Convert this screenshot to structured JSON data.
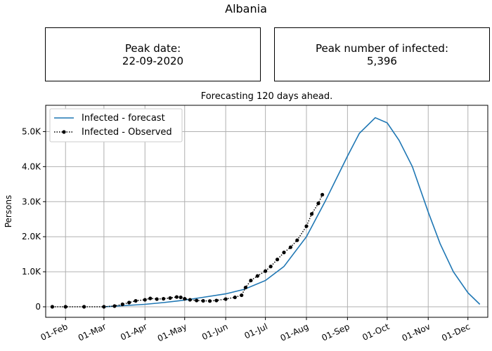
{
  "figure": {
    "title": "Albania",
    "peak_date_label": "Peak date:",
    "peak_date_value": "22-09-2020",
    "peak_number_label": "Peak number of infected:",
    "peak_number_value": "5,396"
  },
  "chart_data": {
    "type": "line",
    "title": "Forecasting 120 days ahead.",
    "xlabel": "",
    "ylabel": "Persons",
    "x_range": [
      "2020-01-17",
      "2020-12-16"
    ],
    "ylim": [
      -300,
      5750
    ],
    "grid": true,
    "legend_position": "top-left",
    "x_ticks": [
      "01-Feb",
      "01-Mar",
      "01-Apr",
      "01-May",
      "01-Jun",
      "01-Jul",
      "01-Aug",
      "01-Sep",
      "01-Oct",
      "01-Nov",
      "01-Dec"
    ],
    "x_tick_dates": [
      "2020-02-01",
      "2020-03-01",
      "2020-04-01",
      "2020-05-01",
      "2020-06-01",
      "2020-07-01",
      "2020-08-01",
      "2020-09-01",
      "2020-10-01",
      "2020-11-01",
      "2020-12-01"
    ],
    "y_ticks": [
      0,
      1000,
      2000,
      3000,
      4000,
      5000
    ],
    "y_tick_labels": [
      "0",
      "1.0K",
      "2.0K",
      "3.0K",
      "4.0K",
      "5.0K"
    ],
    "colors": {
      "forecast": "#1f77b4",
      "observed": "#000000",
      "grid": "#b0b0b0"
    },
    "series": [
      {
        "name": "Infected - forecast",
        "style": "solid-line",
        "x": [
          "2020-03-01",
          "2020-03-15",
          "2020-04-01",
          "2020-04-15",
          "2020-05-01",
          "2020-05-15",
          "2020-06-01",
          "2020-06-15",
          "2020-07-01",
          "2020-07-15",
          "2020-08-01",
          "2020-08-15",
          "2020-09-01",
          "2020-09-10",
          "2020-09-22",
          "2020-10-01",
          "2020-10-10",
          "2020-10-20",
          "2020-11-01",
          "2020-11-10",
          "2020-11-20",
          "2020-12-01",
          "2020-12-10"
        ],
        "y": [
          0,
          30,
          70,
          120,
          190,
          270,
          370,
          500,
          750,
          1150,
          2000,
          3000,
          4300,
          4950,
          5396,
          5250,
          4750,
          4000,
          2700,
          1800,
          1000,
          400,
          70
        ]
      },
      {
        "name": "Infected - Observed",
        "style": "dotted-line-with-markers",
        "x": [
          "2020-01-22",
          "2020-02-01",
          "2020-02-15",
          "2020-03-01",
          "2020-03-09",
          "2020-03-15",
          "2020-03-20",
          "2020-03-25",
          "2020-04-01",
          "2020-04-05",
          "2020-04-10",
          "2020-04-15",
          "2020-04-20",
          "2020-04-25",
          "2020-04-28",
          "2020-05-01",
          "2020-05-05",
          "2020-05-10",
          "2020-05-15",
          "2020-05-20",
          "2020-05-25",
          "2020-06-01",
          "2020-06-08",
          "2020-06-13",
          "2020-06-16",
          "2020-06-20",
          "2020-06-25",
          "2020-07-01",
          "2020-07-05",
          "2020-07-10",
          "2020-07-15",
          "2020-07-20",
          "2020-07-25",
          "2020-08-01",
          "2020-08-05",
          "2020-08-10",
          "2020-08-13"
        ],
        "y": [
          0,
          0,
          0,
          0,
          20,
          70,
          120,
          170,
          200,
          240,
          220,
          230,
          250,
          280,
          270,
          230,
          200,
          180,
          170,
          165,
          180,
          220,
          270,
          330,
          550,
          750,
          880,
          1020,
          1150,
          1350,
          1550,
          1700,
          1900,
          2300,
          2650,
          2950,
          3200
        ]
      }
    ]
  }
}
